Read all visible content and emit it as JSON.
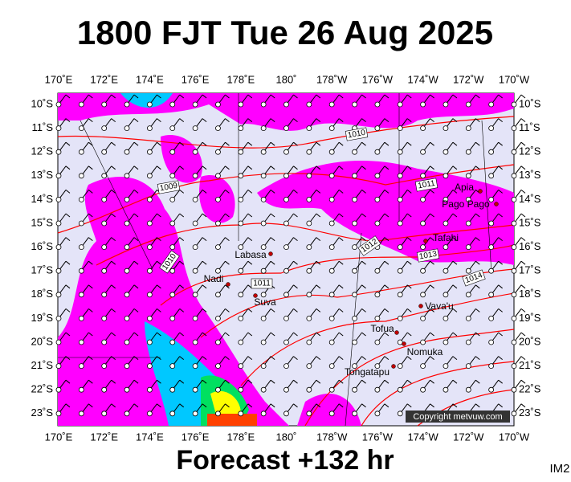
{
  "header": {
    "title": "1800 FJT Tue 26 Aug 2025"
  },
  "axes": {
    "top_labels": [
      "170˚E",
      "172˚E",
      "174˚E",
      "176˚E",
      "178˚E",
      "180˚",
      "178˚W",
      "176˚W",
      "174˚W",
      "172˚W",
      "170˚W"
    ],
    "bottom_labels": [
      "170˚E",
      "172˚E",
      "174˚E",
      "176˚E",
      "178˚E",
      "180˚",
      "178˚W",
      "176˚W",
      "174˚W",
      "172˚W",
      "170˚W"
    ],
    "left_labels": [
      "10˚S",
      "11˚S",
      "12˚S",
      "13˚S",
      "14˚S",
      "15˚S",
      "16˚S",
      "17˚S",
      "18˚S",
      "19˚S",
      "20˚S",
      "21˚S",
      "22˚S",
      "23˚S"
    ],
    "right_labels": [
      "10˚S",
      "11˚S",
      "12˚S",
      "13˚S",
      "14˚S",
      "15˚S",
      "16˚S",
      "17˚S",
      "18˚S",
      "19˚S",
      "20˚S",
      "21˚S",
      "22˚S",
      "23˚S"
    ]
  },
  "places": [
    "Labasa",
    "Nadi",
    "Suva",
    "Apia",
    "Pago Pago",
    "Tafahi",
    "Vava'u",
    "Tofua",
    "Nomuka",
    "Tongatapu"
  ],
  "isobar_labels": [
    "1010",
    "1009",
    "1011",
    "1012",
    "1013",
    "1010",
    "1011",
    "1014"
  ],
  "copyright": "Copyright metvuw.com",
  "footer": {
    "forecast": "Forecast +132 hr",
    "code": "IM2"
  }
}
